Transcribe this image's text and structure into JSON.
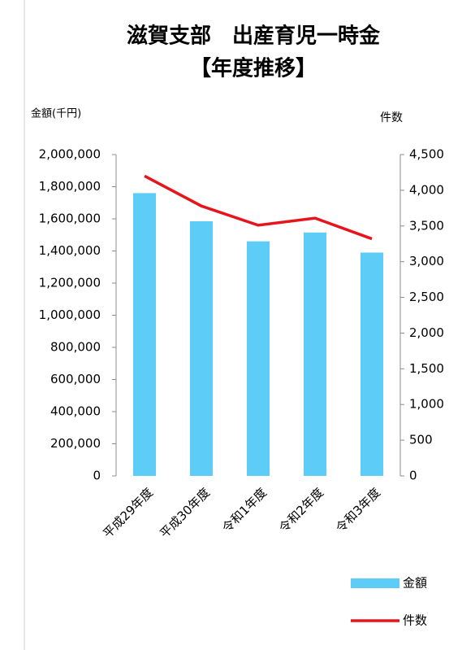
{
  "chart_data": {
    "type": "bar",
    "title": "滋賀支部　出産育児一時金",
    "subtitle": "【年度推移】",
    "y_label": "金額(千円)",
    "y2_label": "件数",
    "categories": [
      "平成29年度",
      "平成30年度",
      "令和1年度",
      "令和2年度",
      "令和3年度"
    ],
    "series": [
      {
        "name": "金額",
        "type": "bar",
        "color": "#5dcdf8",
        "values": [
          1760000,
          1585000,
          1460000,
          1515000,
          1390000
        ]
      },
      {
        "name": "件数",
        "type": "line",
        "axis": "y2",
        "color": "#e8141c",
        "values": [
          4200,
          3780,
          3510,
          3610,
          3320
        ]
      }
    ],
    "ylim": [
      0,
      2000000
    ],
    "yticks": [
      0,
      {
        "value": 200000,
        "label": "200,000"
      },
      {
        "value": 400000,
        "label": "400,000"
      },
      {
        "value": 600000,
        "label": "600,000"
      },
      {
        "value": 800000,
        "label": "800,000"
      },
      {
        "value": 1000000,
        "label": "1,000,000"
      },
      {
        "value": 1200000,
        "label": "1,200,000"
      },
      {
        "value": 1400000,
        "label": "1,400,000"
      },
      {
        "value": 1600000,
        "label": "1,600,000"
      },
      {
        "value": 1800000,
        "label": "1,800,000"
      },
      {
        "value": 2000000,
        "label": "2,000,000"
      }
    ],
    "y2lim": [
      0,
      4500
    ],
    "y2ticks": [
      0,
      500,
      {
        "value": 1000,
        "label": "1,000"
      },
      {
        "value": 1500,
        "label": "1,500"
      },
      {
        "value": 2000,
        "label": "2,000"
      },
      {
        "value": 2500,
        "label": "2,500"
      },
      {
        "value": 3000,
        "label": "3,000"
      },
      {
        "value": 3500,
        "label": "3,500"
      },
      {
        "value": 4000,
        "label": "4,000"
      },
      {
        "value": 4500,
        "label": "4,500"
      }
    ],
    "grid": false,
    "legend": "bottom-right"
  }
}
